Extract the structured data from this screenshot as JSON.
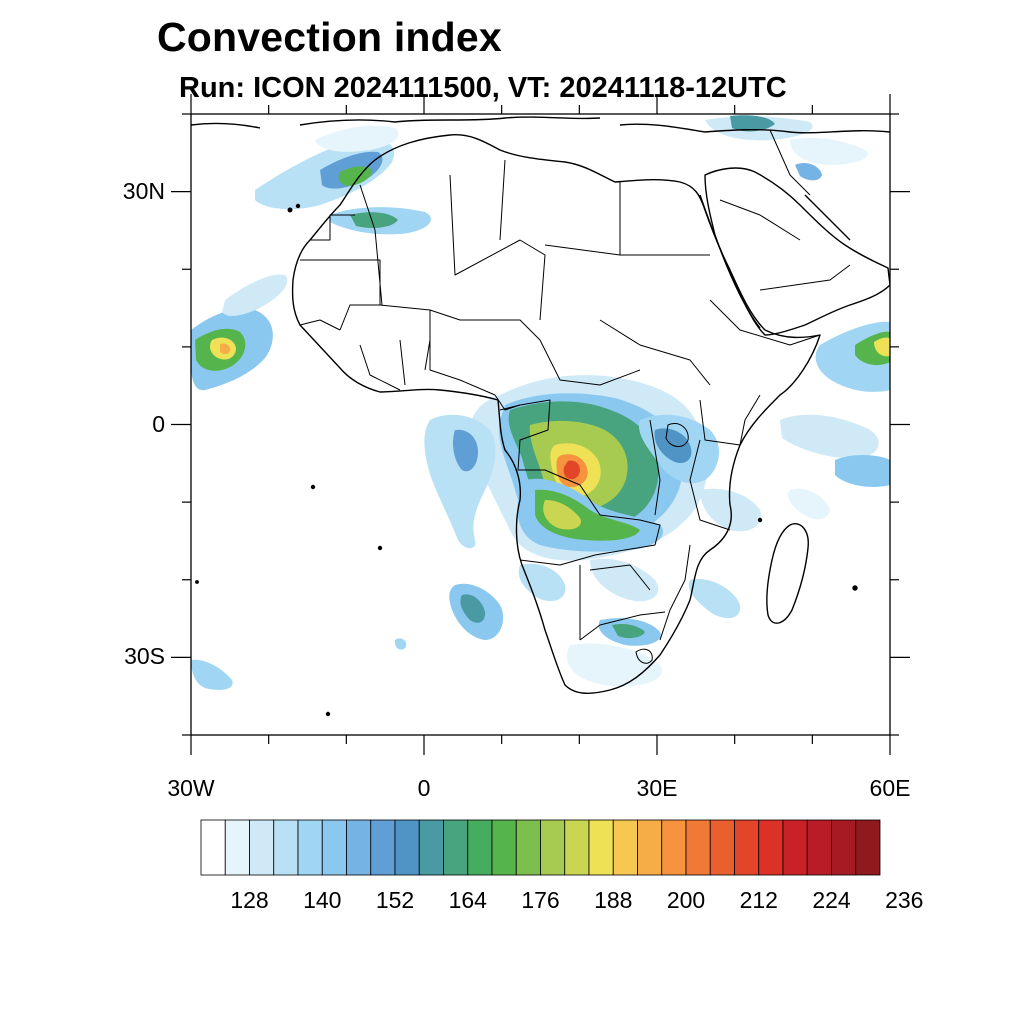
{
  "header": {
    "title": "Convection index",
    "subtitle": "Run: ICON 2024111500,  VT: 20241118-12UTC"
  },
  "map": {
    "projection": "cylindrical-equidistant",
    "lon_range": [
      -30,
      60
    ],
    "lat_range": [
      -40,
      40
    ],
    "lat_ticks": [
      {
        "value": 30,
        "label": "30N"
      },
      {
        "value": 0,
        "label": "0"
      },
      {
        "value": -30,
        "label": "30S"
      }
    ],
    "lon_ticks": [
      {
        "value": -30,
        "label": "30W"
      },
      {
        "value": 0,
        "label": "0"
      },
      {
        "value": 30,
        "label": "30E"
      },
      {
        "value": 60,
        "label": "60E"
      }
    ],
    "minor_tick_step_deg": 10,
    "field": "convection index",
    "coastline_color": "#000000"
  },
  "colorbar": {
    "colors": [
      "#ffffff",
      "#e6f4fb",
      "#cfe9f7",
      "#b9e1f6",
      "#a0d6f3",
      "#8ac8ef",
      "#74b3e4",
      "#5f9fd6",
      "#4f94c4",
      "#4a9aa3",
      "#47a47f",
      "#46ad5e",
      "#55b54c",
      "#7dbf4e",
      "#a6cb50",
      "#cad552",
      "#eee156",
      "#f6c851",
      "#f6ad47",
      "#f5933e",
      "#f07935",
      "#ea5f2e",
      "#e24528",
      "#dc3127",
      "#c92128",
      "#b81c26",
      "#a61b23",
      "#8f1a1d"
    ],
    "tick_labels": [
      "128",
      "140",
      "152",
      "164",
      "176",
      "188",
      "200",
      "212",
      "224",
      "236"
    ],
    "tick_label_values": [
      128,
      140,
      152,
      164,
      176,
      188,
      200,
      212,
      224,
      236
    ]
  }
}
